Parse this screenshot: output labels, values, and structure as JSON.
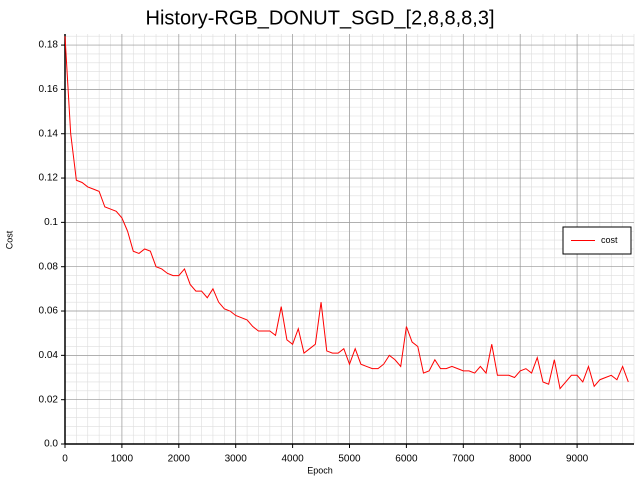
{
  "chart_data": {
    "type": "line",
    "title": "History-RGB_DONUT_SGD_[2,8,8,8,3]",
    "x_label": "Epoch",
    "y_label": "Cost",
    "x": [
      0,
      100,
      200,
      300,
      400,
      500,
      600,
      700,
      800,
      900,
      1000,
      1100,
      1200,
      1300,
      1400,
      1500,
      1600,
      1700,
      1800,
      1900,
      2000,
      2100,
      2200,
      2300,
      2400,
      2500,
      2600,
      2700,
      2800,
      2900,
      3000,
      3100,
      3200,
      3300,
      3400,
      3500,
      3600,
      3700,
      3800,
      3900,
      4000,
      4100,
      4200,
      4300,
      4400,
      4500,
      4600,
      4700,
      4800,
      4900,
      5000,
      5100,
      5200,
      5300,
      5400,
      5500,
      5600,
      5700,
      5800,
      5900,
      6000,
      6100,
      6200,
      6300,
      6400,
      6500,
      6600,
      6700,
      6800,
      6900,
      7000,
      7100,
      7200,
      7300,
      7400,
      7500,
      7600,
      7700,
      7800,
      7900,
      8000,
      8100,
      8200,
      8300,
      8400,
      8500,
      8600,
      8700,
      8800,
      8900,
      9000,
      9100,
      9200,
      9300,
      9400,
      9500,
      9600,
      9700,
      9800,
      9900
    ],
    "series": [
      {
        "name": "cost",
        "color": "#ff0000",
        "values": [
          0.184,
          0.14,
          0.119,
          0.118,
          0.116,
          0.115,
          0.114,
          0.107,
          0.106,
          0.105,
          0.102,
          0.096,
          0.087,
          0.086,
          0.088,
          0.087,
          0.08,
          0.079,
          0.077,
          0.076,
          0.076,
          0.079,
          0.072,
          0.069,
          0.069,
          0.066,
          0.07,
          0.064,
          0.061,
          0.06,
          0.058,
          0.057,
          0.056,
          0.053,
          0.051,
          0.051,
          0.051,
          0.049,
          0.062,
          0.047,
          0.045,
          0.052,
          0.041,
          0.043,
          0.045,
          0.064,
          0.042,
          0.041,
          0.041,
          0.043,
          0.036,
          0.043,
          0.036,
          0.035,
          0.034,
          0.034,
          0.036,
          0.04,
          0.038,
          0.035,
          0.053,
          0.046,
          0.044,
          0.032,
          0.033,
          0.038,
          0.034,
          0.034,
          0.035,
          0.034,
          0.033,
          0.033,
          0.032,
          0.035,
          0.032,
          0.045,
          0.031,
          0.031,
          0.031,
          0.03,
          0.033,
          0.034,
          0.032,
          0.039,
          0.028,
          0.027,
          0.038,
          0.025,
          0.028,
          0.031,
          0.031,
          0.028,
          0.035,
          0.026,
          0.029,
          0.03,
          0.031,
          0.029,
          0.035,
          0.028
        ]
      }
    ],
    "xlim": [
      0,
      10000
    ],
    "xticks": [
      0,
      1000,
      2000,
      3000,
      4000,
      5000,
      6000,
      7000,
      8000,
      9000
    ],
    "ylim": [
      0,
      0.185
    ],
    "yticks": [
      {
        "value": 0,
        "label": "0.0"
      },
      0.02,
      0.04,
      0.06,
      0.08,
      0.1,
      0.12,
      0.14,
      0.16,
      0.18
    ],
    "grid": true,
    "minor_grid": true,
    "legend": "center right"
  }
}
